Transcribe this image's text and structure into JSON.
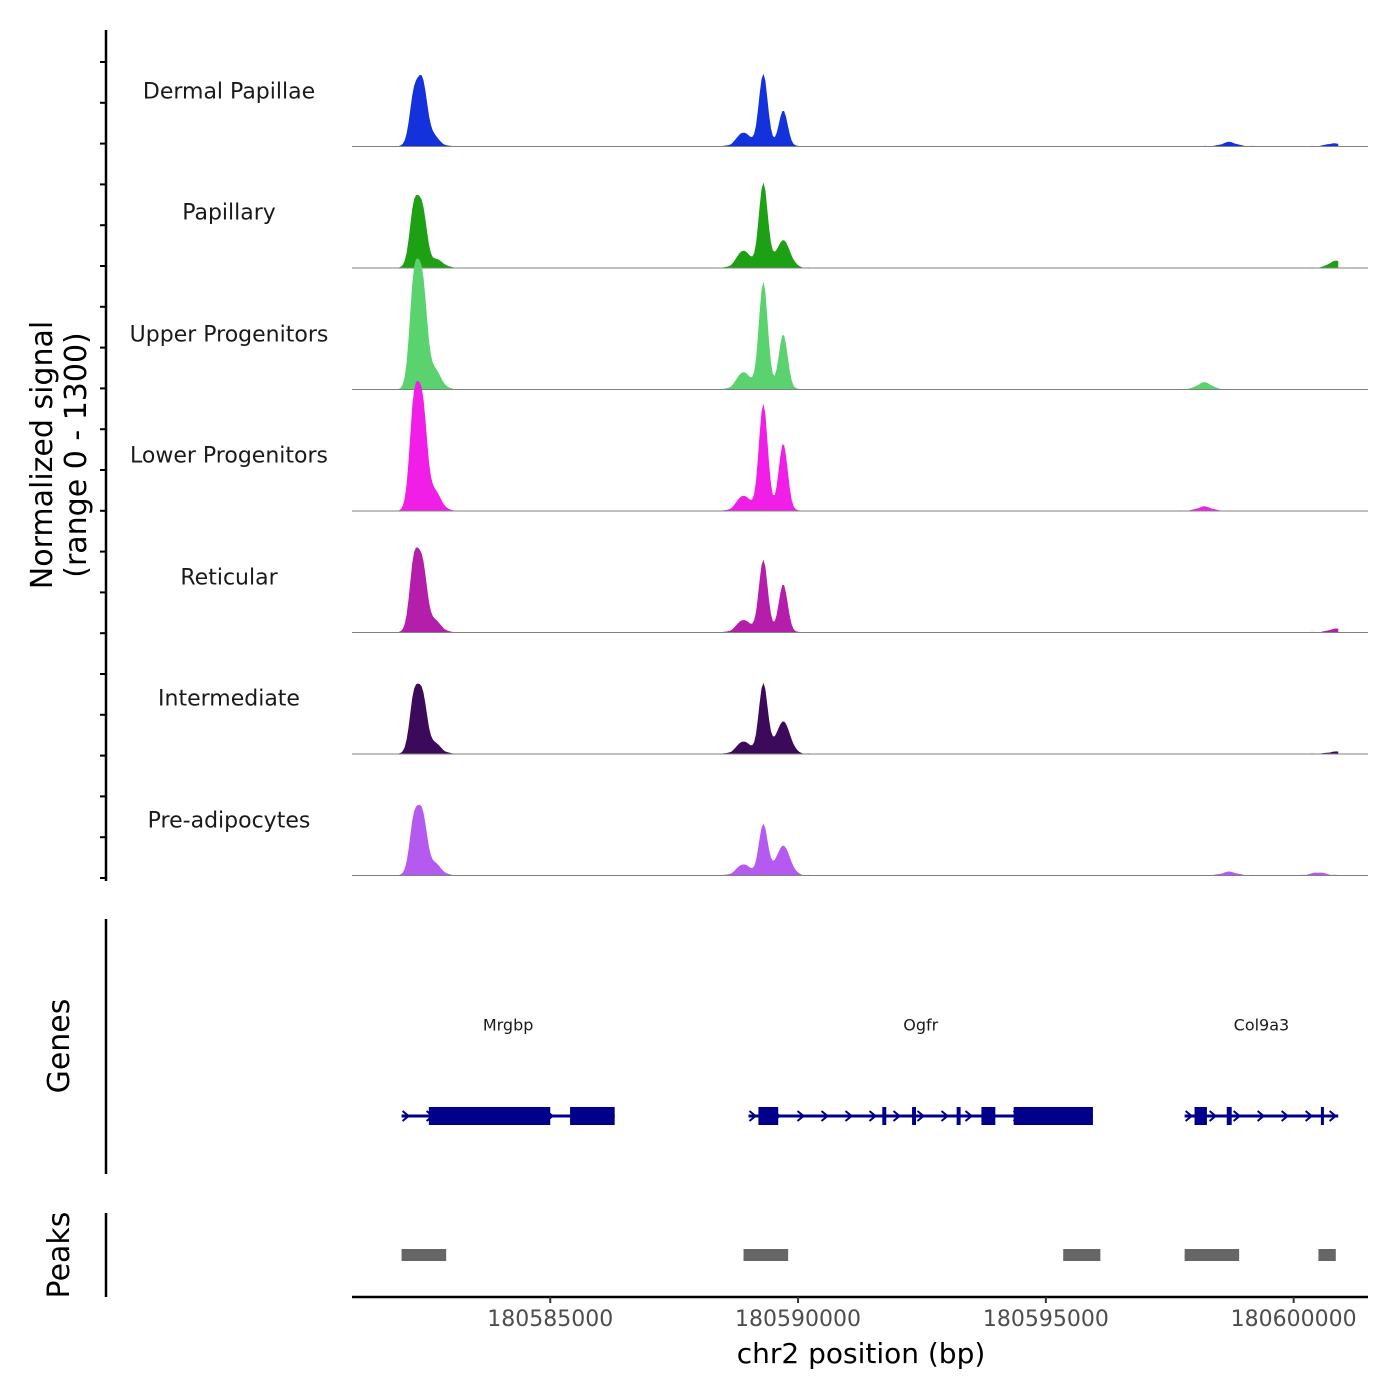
{
  "chart_data": {
    "type": "area",
    "title": "",
    "ylabel_line1": "Normalized signal",
    "ylabel_line2": "(range 0 - 1300)",
    "ylim": [
      0,
      1300
    ],
    "xlabel": "chr2 position (bp)",
    "xlim": [
      180581000,
      180601500
    ],
    "xticks": [
      180585000,
      180590000,
      180595000,
      180600000
    ],
    "xtick_labels": [
      "180585000",
      "180590000",
      "180595000",
      "180600000"
    ],
    "tracks": [
      {
        "name": "Dermal Papillae",
        "color": "#1432dc",
        "peaks": [
          {
            "center": 180582250,
            "value": 720
          },
          {
            "center": 180582420,
            "value": 820
          },
          {
            "center": 180582600,
            "value": 180
          },
          {
            "center": 180588900,
            "value": 200
          },
          {
            "center": 180589300,
            "value": 1050
          },
          {
            "center": 180589700,
            "value": 520
          },
          {
            "center": 180598700,
            "value": 60
          },
          {
            "center": 180600800,
            "value": 40
          }
        ]
      },
      {
        "name": "Papillary",
        "color": "#1ea014",
        "peaks": [
          {
            "center": 180582250,
            "value": 850
          },
          {
            "center": 180582420,
            "value": 800
          },
          {
            "center": 180582700,
            "value": 120
          },
          {
            "center": 180588900,
            "value": 250
          },
          {
            "center": 180589300,
            "value": 1230
          },
          {
            "center": 180589700,
            "value": 400
          },
          {
            "center": 180600850,
            "value": 100
          }
        ]
      },
      {
        "name": "Upper Progenitors",
        "color": "#5ad26e",
        "peaks": [
          {
            "center": 180582250,
            "value": 1520
          },
          {
            "center": 180582420,
            "value": 1420
          },
          {
            "center": 180582650,
            "value": 300
          },
          {
            "center": 180588900,
            "value": 250
          },
          {
            "center": 180589300,
            "value": 1560
          },
          {
            "center": 180589700,
            "value": 800
          },
          {
            "center": 180598200,
            "value": 100
          }
        ]
      },
      {
        "name": "Lower Progenitors",
        "color": "#f01ee6",
        "peaks": [
          {
            "center": 180582250,
            "value": 1500
          },
          {
            "center": 180582420,
            "value": 1420
          },
          {
            "center": 180582650,
            "value": 300
          },
          {
            "center": 180588900,
            "value": 220
          },
          {
            "center": 180589300,
            "value": 1550
          },
          {
            "center": 180589700,
            "value": 980
          },
          {
            "center": 180598200,
            "value": 60
          }
        ]
      },
      {
        "name": "Reticular",
        "color": "#b41eaa",
        "peaks": [
          {
            "center": 180582250,
            "value": 1000
          },
          {
            "center": 180582420,
            "value": 900
          },
          {
            "center": 180582650,
            "value": 180
          },
          {
            "center": 180588900,
            "value": 180
          },
          {
            "center": 180589300,
            "value": 1050
          },
          {
            "center": 180589700,
            "value": 700
          },
          {
            "center": 180600850,
            "value": 50
          }
        ]
      },
      {
        "name": "Intermediate",
        "color": "#3c0a5a",
        "peaks": [
          {
            "center": 180582250,
            "value": 800
          },
          {
            "center": 180582420,
            "value": 780
          },
          {
            "center": 180582650,
            "value": 160
          },
          {
            "center": 180588900,
            "value": 180
          },
          {
            "center": 180589300,
            "value": 1020
          },
          {
            "center": 180589700,
            "value": 470
          },
          {
            "center": 180600850,
            "value": 30
          }
        ]
      },
      {
        "name": "Pre-adipocytes",
        "color": "#b45af0",
        "peaks": [
          {
            "center": 180582250,
            "value": 780
          },
          {
            "center": 180582420,
            "value": 800
          },
          {
            "center": 180582650,
            "value": 180
          },
          {
            "center": 180588900,
            "value": 160
          },
          {
            "center": 180589300,
            "value": 740
          },
          {
            "center": 180589700,
            "value": 430
          },
          {
            "center": 180598700,
            "value": 50
          },
          {
            "center": 180600500,
            "value": 40
          }
        ]
      }
    ],
    "genes_title": "Genes",
    "genes": [
      {
        "name": "Mrgbp",
        "start": 180582000,
        "end": 180586300,
        "strand": "+",
        "exons": [
          [
            180582550,
            180585000
          ],
          [
            180585400,
            180586300
          ]
        ]
      },
      {
        "name": "Ogfr",
        "start": 180589000,
        "end": 180595950,
        "strand": "+",
        "exons": [
          [
            180589200,
            180589600
          ],
          [
            180591700,
            180591780
          ],
          [
            180592300,
            180592380
          ],
          [
            180593200,
            180593280
          ],
          [
            180593700,
            180593980
          ],
          [
            180594350,
            180595950
          ]
        ]
      },
      {
        "name": "Col9a3",
        "start": 180597800,
        "end": 180600900,
        "strand": "+",
        "exons": [
          [
            180598000,
            180598250
          ],
          [
            180598650,
            180598750
          ],
          [
            180600550,
            180600600
          ]
        ]
      }
    ],
    "peaks_title": "Peaks",
    "peaks": [
      [
        180582000,
        180582900
      ],
      [
        180588900,
        180589800
      ],
      [
        180595350,
        180596100
      ],
      [
        180597800,
        180598900
      ],
      [
        180600500,
        180600850
      ]
    ]
  }
}
